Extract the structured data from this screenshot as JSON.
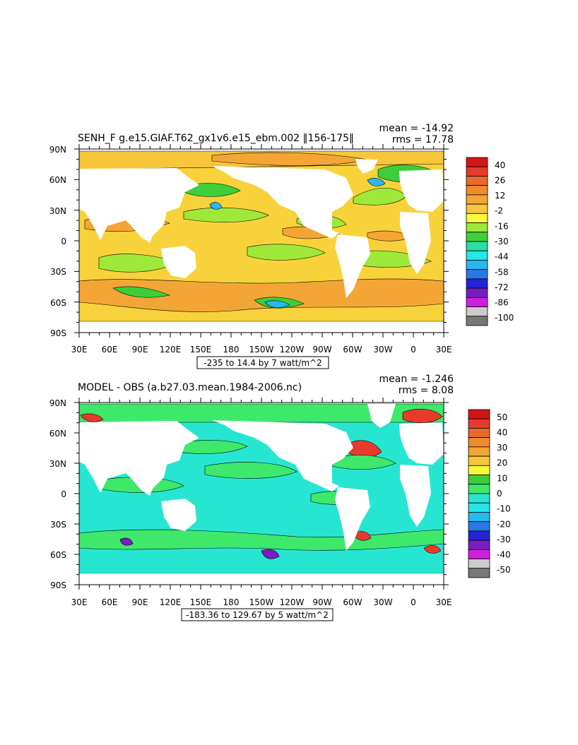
{
  "panels": [
    {
      "title": "SENH_F g.e15.GIAF.T62_gx1v6.e15_ebm.002 ‖156-175‖",
      "mean_text": "mean = -14.92",
      "rms_text": "rms = 17.78",
      "range_text": "-235 to 14.4 by 7 watt/m^2",
      "colorbar": {
        "colors": [
          "#d41515",
          "#e83a2b",
          "#e86a2a",
          "#f08a2c",
          "#f3a636",
          "#f8c63a",
          "#fafa3c",
          "#9ee83a",
          "#3ccf3a",
          "#28e0a0",
          "#26e6e6",
          "#26b8f0",
          "#2a78e6",
          "#2323d8",
          "#7a1cc4",
          "#d01ee0",
          "#cccccc",
          "#777777"
        ],
        "labels": [
          "40",
          "26",
          "12",
          "-2",
          "-16",
          "-30",
          "-44",
          "-58",
          "-72",
          "-86",
          "-100"
        ]
      },
      "field_colors": {
        "base": "#f8d23a",
        "low": "#9ee83a",
        "mid": "#3ccf3a",
        "high": "#f3a636",
        "ice": "#f8c63a",
        "cold": "#26b8f0"
      }
    },
    {
      "title": "MODEL - OBS (a.b27.03.mean.1984-2006.nc)",
      "mean_text": "mean = -1.246",
      "rms_text": "rms = 8.08",
      "range_text": "-183.36 to 129.67 by 5 watt/m^2",
      "colorbar": {
        "colors": [
          "#d41515",
          "#e83a2b",
          "#e86a2a",
          "#f08a2c",
          "#f3a636",
          "#f8c63a",
          "#fafa3c",
          "#3ccf3a",
          "#3ee86a",
          "#26e6d2",
          "#26e6e6",
          "#26b8f0",
          "#2a78e6",
          "#2323d8",
          "#7a1cc4",
          "#d01ee0",
          "#cccccc",
          "#777777"
        ],
        "labels": [
          "50",
          "40",
          "30",
          "20",
          "10",
          "0",
          "-10",
          "-20",
          "-30",
          "-40",
          "-50"
        ]
      },
      "field_colors": {
        "base": "#26e6d2",
        "low": "#3ccf3a",
        "mid": "#3ee86a",
        "high": "#e83a2b",
        "ice": "#3ee86a",
        "cold": "#7a1cc4"
      }
    }
  ],
  "axes": {
    "lat_labels": [
      "90N",
      "60N",
      "30N",
      "0",
      "30S",
      "60S",
      "90S"
    ],
    "lon_labels": [
      "30E",
      "60E",
      "90E",
      "120E",
      "150E",
      "180",
      "150W",
      "120W",
      "90W",
      "60W",
      "30W",
      "0",
      "30E"
    ]
  }
}
